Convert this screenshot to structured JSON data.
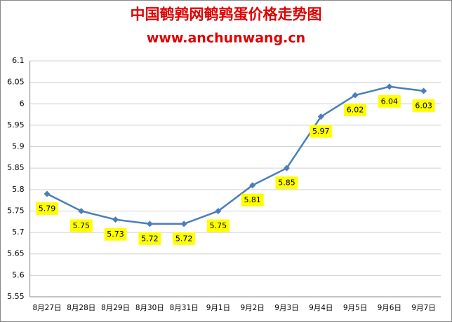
{
  "chart_data": {
    "type": "line",
    "title": "中国鹌鹑网鹌鹑蛋价格走势图",
    "subtitle": "www.anchunwang.cn",
    "categories": [
      "8月27日",
      "8月28日",
      "8月29日",
      "8月30日",
      "8月31日",
      "9月1日",
      "9月2日",
      "9月3日",
      "9月4日",
      "9月5日",
      "9月6日",
      "9月7日"
    ],
    "series": [
      {
        "name": "鹌鹑蛋价格",
        "color": "#4a7ebb",
        "values": [
          5.79,
          5.75,
          5.73,
          5.72,
          5.72,
          5.75,
          5.81,
          5.85,
          5.97,
          6.02,
          6.04,
          6.03
        ]
      }
    ],
    "ylim": [
      5.55,
      6.1
    ],
    "yticks": [
      5.55,
      5.6,
      5.65,
      5.7,
      5.75,
      5.8,
      5.85,
      5.9,
      5.95,
      6,
      6.05,
      6.1
    ],
    "grid": true,
    "label_color": "#ffff00"
  }
}
